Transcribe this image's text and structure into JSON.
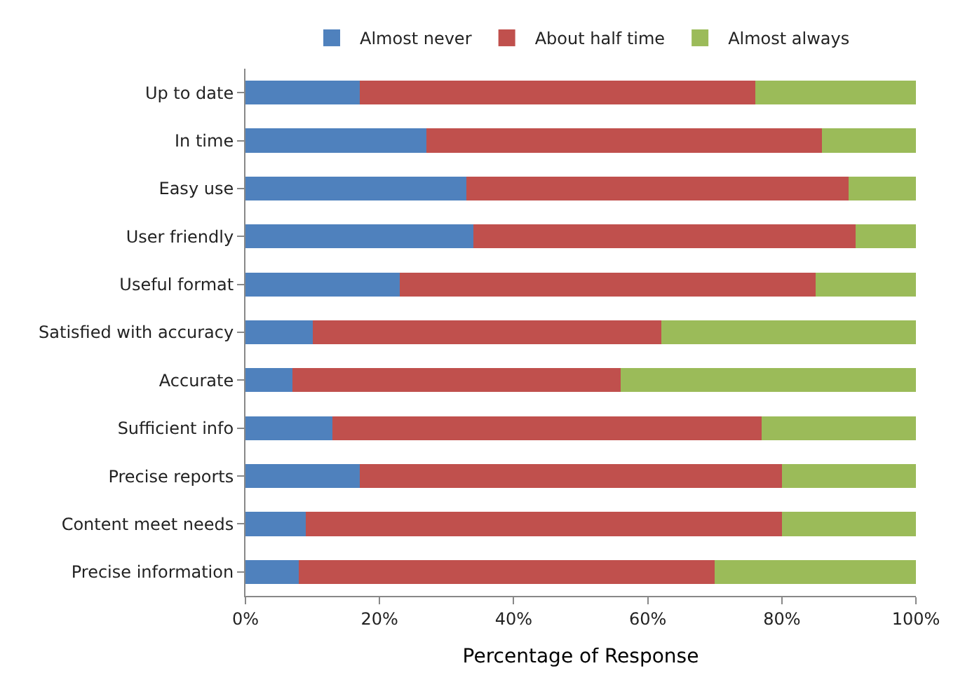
{
  "chart_data": {
    "type": "bar",
    "orientation": "horizontal",
    "stacked": true,
    "xlabel": "Percentage of Response",
    "categories": [
      "Up to date",
      "In time",
      "Easy use",
      "User friendly",
      "Useful format",
      "Satisfied with accuracy",
      "Accurate",
      "Sufficient info",
      "Precise reports",
      "Content meet needs",
      "Precise information"
    ],
    "series": [
      {
        "name": "Almost never",
        "color": "#4f81bd",
        "values": [
          17,
          27,
          33,
          34,
          23,
          10,
          7,
          13,
          17,
          9,
          8
        ]
      },
      {
        "name": "About half time",
        "color": "#c0504d",
        "values": [
          59,
          59,
          57,
          57,
          62,
          52,
          49,
          64,
          63,
          71,
          62
        ]
      },
      {
        "name": "Almost always",
        "color": "#9bbb59",
        "values": [
          24,
          14,
          10,
          9,
          15,
          38,
          44,
          23,
          20,
          20,
          30
        ]
      }
    ],
    "xlim": [
      0,
      100
    ],
    "xticks": [
      {
        "value": 0,
        "label": "0%"
      },
      {
        "value": 20,
        "label": "20%"
      },
      {
        "value": 40,
        "label": "40%"
      },
      {
        "value": 60,
        "label": "60%"
      },
      {
        "value": 80,
        "label": "80%"
      },
      {
        "value": 100,
        "label": "100%"
      }
    ],
    "legend": "top"
  }
}
